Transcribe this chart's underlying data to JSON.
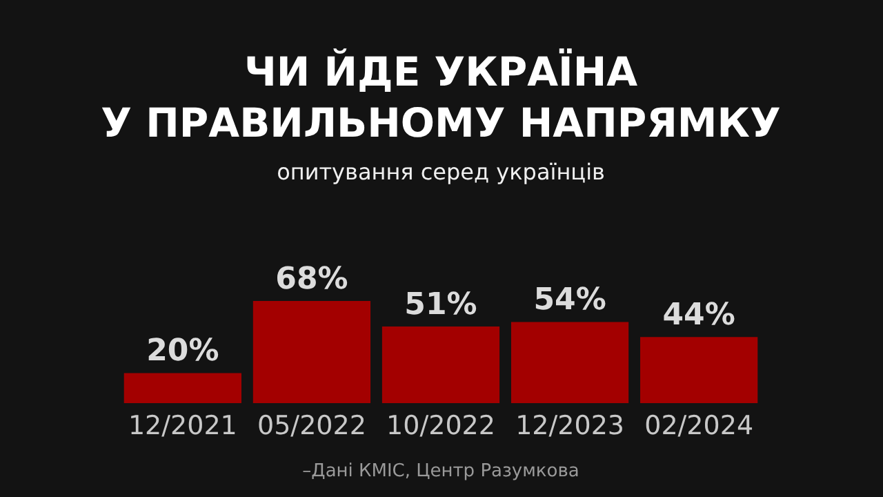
{
  "chart_data": {
    "type": "bar",
    "title": "ЧИ ЙДЕ УКРАЇНА\nУ ПРАВИЛЬНОМУ НАПРЯМКУ",
    "subtitle": "опитування серед українців",
    "categories": [
      "12/2021",
      "05/2022",
      "10/2022",
      "12/2023",
      "02/2024"
    ],
    "values": [
      20,
      68,
      51,
      54,
      44
    ],
    "value_labels": [
      "20%",
      "68%",
      "51%",
      "54%",
      "44%"
    ],
    "color": "#a30000",
    "annotations": [
      "–Дані КМІС, Центр Разумкова"
    ]
  }
}
